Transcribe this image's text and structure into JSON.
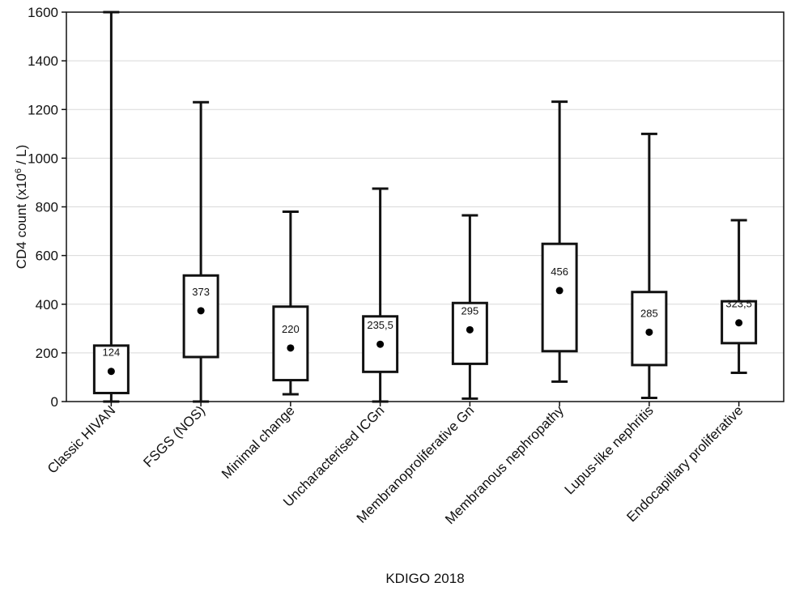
{
  "chart_data": {
    "type": "boxplot",
    "xlabel": "KDIGO 2018",
    "ylabel": {
      "prefix": "CD4 count (x10",
      "superscript": "6",
      "suffix": " / L)"
    },
    "ylim": [
      0,
      1600
    ],
    "yticks": [
      "0",
      "200",
      "400",
      "600",
      "800",
      "1000",
      "1200",
      "1400",
      "1600"
    ],
    "grid": true,
    "categories": [
      "Classic HIVAN",
      "FSGS (NOS)",
      "Minimal change",
      "Uncharacterised ICGn",
      "Membranoproliferative Gn",
      "Membranous nephropathy",
      "Lupus-like nephritis",
      "Endocapillary proliferative"
    ],
    "boxes": [
      {
        "category": "Classic HIVAN",
        "min": 0,
        "q1": 35,
        "median": 124,
        "q3": 230,
        "max": 1600,
        "median_label": "124"
      },
      {
        "category": "FSGS (NOS)",
        "min": 0,
        "q1": 183,
        "median": 373,
        "q3": 518,
        "max": 1230,
        "median_label": "373"
      },
      {
        "category": "Minimal change",
        "min": 30,
        "q1": 88,
        "median": 220,
        "q3": 390,
        "max": 780,
        "median_label": "220"
      },
      {
        "category": "Uncharacterised ICGn",
        "min": 0,
        "q1": 122,
        "median": 235.5,
        "q3": 350,
        "max": 875,
        "median_label": "235,5"
      },
      {
        "category": "Membranoproliferative Gn",
        "min": 12,
        "q1": 155,
        "median": 295,
        "q3": 405,
        "max": 765,
        "median_label": "295"
      },
      {
        "category": "Membranous nephropathy",
        "min": 82,
        "q1": 207,
        "median": 456,
        "q3": 648,
        "max": 1232,
        "median_label": "456"
      },
      {
        "category": "Lupus-like nephritis",
        "min": 15,
        "q1": 150,
        "median": 285,
        "q3": 450,
        "max": 1100,
        "median_label": "285"
      },
      {
        "category": "Endocapillary proliferative",
        "min": 118,
        "q1": 240,
        "median": 323.5,
        "q3": 412,
        "max": 745,
        "median_label": "323,5"
      }
    ]
  }
}
